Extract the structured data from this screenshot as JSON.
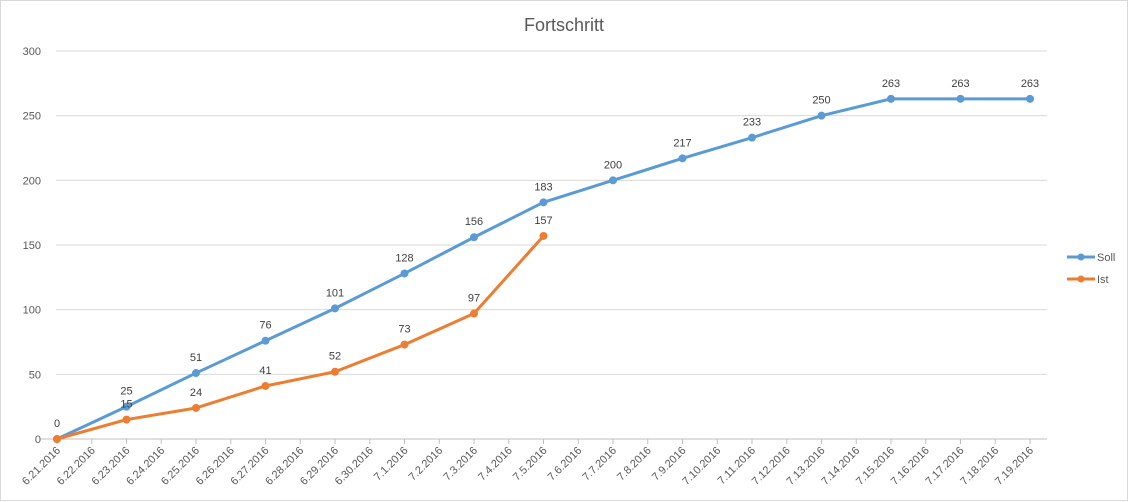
{
  "chart_data": {
    "type": "line",
    "title": "Fortschritt",
    "xlabel": "",
    "ylabel": "",
    "ylim": [
      0,
      300
    ],
    "yticks": [
      0,
      50,
      100,
      150,
      200,
      250,
      300
    ],
    "grid": true,
    "legend_position": "right",
    "categories": [
      "6.21.2016",
      "6.22.2016",
      "6.23.2016",
      "6.24.2016",
      "6.25.2016",
      "6.26.2016",
      "6.27.2016",
      "6.28.2016",
      "6.29.2016",
      "6.30.2016",
      "7.1.2016",
      "7.2.2016",
      "7.3.2016",
      "7.4.2016",
      "7.5.2016",
      "7.6.2016",
      "7.7.2016",
      "7.8.2016",
      "7.9.2016",
      "7.10.2016",
      "7.11.2016",
      "7.12.2016",
      "7.13.2016",
      "7.14.2016",
      "7.15.2016",
      "7.16.2016",
      "7.17.2016",
      "7.18.2016",
      "7.19.2016"
    ],
    "series": [
      {
        "name": "Soll",
        "color": "#5b9bd5",
        "points": [
          {
            "x": "6.21.2016",
            "y": 0
          },
          {
            "x": "6.23.2016",
            "y": 25
          },
          {
            "x": "6.25.2016",
            "y": 51
          },
          {
            "x": "6.27.2016",
            "y": 76
          },
          {
            "x": "6.29.2016",
            "y": 101
          },
          {
            "x": "7.1.2016",
            "y": 128
          },
          {
            "x": "7.3.2016",
            "y": 156
          },
          {
            "x": "7.5.2016",
            "y": 183
          },
          {
            "x": "7.7.2016",
            "y": 200
          },
          {
            "x": "7.9.2016",
            "y": 217
          },
          {
            "x": "7.11.2016",
            "y": 233
          },
          {
            "x": "7.13.2016",
            "y": 250
          },
          {
            "x": "7.15.2016",
            "y": 263
          },
          {
            "x": "7.17.2016",
            "y": 263
          },
          {
            "x": "7.19.2016",
            "y": 263
          }
        ]
      },
      {
        "name": "Ist",
        "color": "#ed7d31",
        "points": [
          {
            "x": "6.21.2016",
            "y": 0
          },
          {
            "x": "6.23.2016",
            "y": 15
          },
          {
            "x": "6.25.2016",
            "y": 24
          },
          {
            "x": "6.27.2016",
            "y": 41
          },
          {
            "x": "6.29.2016",
            "y": 52
          },
          {
            "x": "7.1.2016",
            "y": 73
          },
          {
            "x": "7.3.2016",
            "y": 97
          },
          {
            "x": "7.5.2016",
            "y": 157
          }
        ]
      }
    ]
  }
}
